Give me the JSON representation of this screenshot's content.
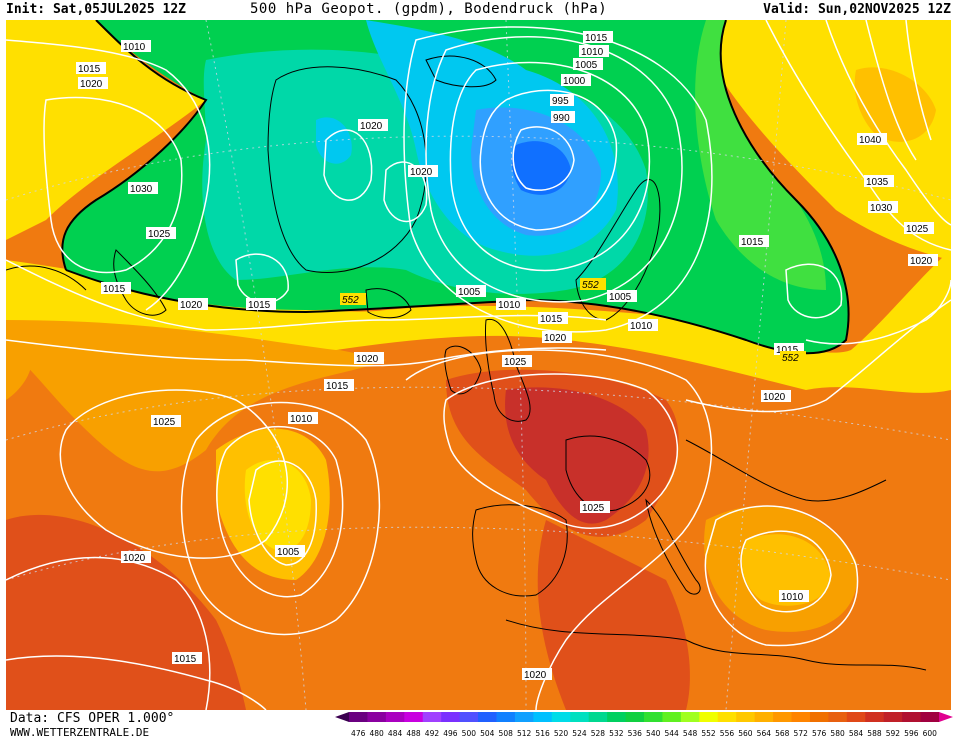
{
  "header": {
    "init": "Init: Sat,05JUL2025 12Z",
    "title": "500 hPa Geopot. (gpdm), Bodendruck (hPa)",
    "valid": "Valid: Sun,02NOV2025 12Z"
  },
  "footer": {
    "data_source": "Data: CFS OPER 1.000°",
    "website": "WWW.WETTERZENTRALE.DE"
  },
  "colorbar": {
    "levels": [
      "476",
      "480",
      "484",
      "488",
      "492",
      "496",
      "500",
      "504",
      "508",
      "512",
      "516",
      "520",
      "524",
      "528",
      "532",
      "536",
      "540",
      "544",
      "548",
      "552",
      "556",
      "560",
      "564",
      "568",
      "572",
      "576",
      "580",
      "584",
      "588",
      "592",
      "596",
      "600"
    ],
    "colors": [
      "#3a0050",
      "#6a0080",
      "#8a00a0",
      "#aa00c0",
      "#c800e0",
      "#a040ff",
      "#7a30ff",
      "#5050ff",
      "#2060ff",
      "#1080ff",
      "#10a0ff",
      "#00c0ff",
      "#00dce8",
      "#00e0c0",
      "#00d890",
      "#00d060",
      "#10d040",
      "#30e030",
      "#60f020",
      "#a0ff20",
      "#f0ff00",
      "#ffe000",
      "#ffc800",
      "#ffb000",
      "#ff9800",
      "#ff8400",
      "#f07000",
      "#e86010",
      "#e04818",
      "#d03020",
      "#c02028",
      "#b01030",
      "#a00040",
      "#e00090"
    ]
  },
  "map": {
    "isobars": [
      {
        "label": "1010",
        "pos": "NW Atlantic"
      },
      {
        "label": "1015",
        "pos": "Labrador"
      },
      {
        "label": "1020",
        "pos": "Labrador"
      },
      {
        "label": "1030",
        "pos": "Canada"
      },
      {
        "label": "1025",
        "pos": "Canada"
      },
      {
        "label": "1015",
        "pos": "Newfoundland"
      },
      {
        "label": "1020",
        "pos": "Newfoundland"
      },
      {
        "label": "1015",
        "pos": "Greenland south"
      },
      {
        "label": "1020",
        "pos": "Greenland"
      },
      {
        "label": "1020",
        "pos": "Greenland east"
      },
      {
        "label": "1005",
        "pos": "Iceland"
      },
      {
        "label": "1010",
        "pos": "Faroe"
      },
      {
        "label": "1015",
        "pos": "North Sea"
      },
      {
        "label": "1020",
        "pos": "North Sea"
      },
      {
        "label": "1025",
        "pos": "Ireland"
      },
      {
        "label": "1020",
        "pos": "Mid Atlantic north"
      },
      {
        "label": "1015",
        "pos": "Mid Atlantic"
      },
      {
        "label": "1010",
        "pos": "Mid Atlantic"
      },
      {
        "label": "1025",
        "pos": "West Atlantic"
      },
      {
        "label": "1005",
        "pos": "Azores low"
      },
      {
        "label": "1020",
        "pos": "Subtropical Atlantic"
      },
      {
        "label": "1015",
        "pos": "Subtropical Atlantic south"
      },
      {
        "label": "1025",
        "pos": "France"
      },
      {
        "label": "1020",
        "pos": "North Africa"
      },
      {
        "label": "1010",
        "pos": "Eastern Med"
      },
      {
        "label": "1020",
        "pos": "Balkans"
      },
      {
        "label": "1015",
        "pos": "Russia"
      },
      {
        "label": "1010",
        "pos": "Scandinavia"
      },
      {
        "label": "1005",
        "pos": "Scandinavia"
      },
      {
        "label": "1015",
        "pos": "Barents"
      },
      {
        "label": "1010",
        "pos": "Barents"
      },
      {
        "label": "1005",
        "pos": "Barents"
      },
      {
        "label": "1000",
        "pos": "Svalbard"
      },
      {
        "label": "995",
        "pos": "Svalbard"
      },
      {
        "label": "990",
        "pos": "Svalbard"
      },
      {
        "label": "1015",
        "pos": "Siberia"
      },
      {
        "label": "1040",
        "pos": "Siberia"
      },
      {
        "label": "1035",
        "pos": "Siberia"
      },
      {
        "label": "1030",
        "pos": "Siberia"
      },
      {
        "label": "1025",
        "pos": "Siberia"
      },
      {
        "label": "1020",
        "pos": "Siberia"
      }
    ],
    "heights": [
      {
        "label": "552",
        "pos": "Atlantic"
      },
      {
        "label": "552",
        "pos": "Scandinavia"
      },
      {
        "label": "552",
        "pos": "Russia"
      }
    ],
    "fill_colors": {
      "deep_orange": "#e0501a",
      "orange": "#f07a10",
      "light_orange": "#f8a000",
      "yellow_orange": "#ffc000",
      "yellow": "#ffe000",
      "light_green": "#40e040",
      "green": "#00d050",
      "teal": "#00d8a8",
      "cyan": "#00c8f0",
      "light_blue": "#30a0ff",
      "blue": "#1070ff",
      "red_high": "#c8302a"
    }
  }
}
